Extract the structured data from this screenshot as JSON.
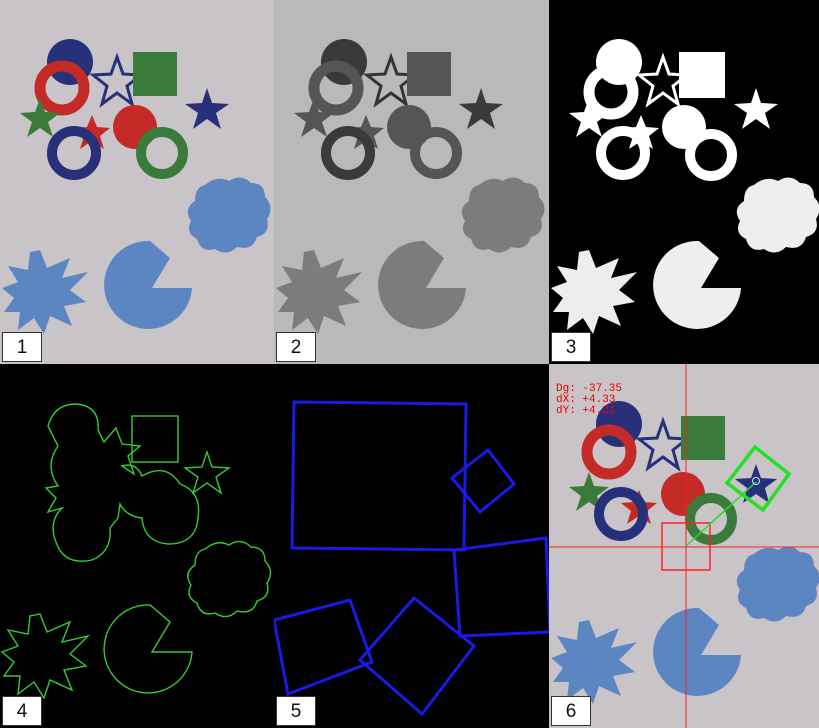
{
  "panels": [
    {
      "id": "1",
      "label": "1"
    },
    {
      "id": "2",
      "label": "2"
    },
    {
      "id": "3",
      "label": "3"
    },
    {
      "id": "4",
      "label": "4"
    },
    {
      "id": "5",
      "label": "5"
    },
    {
      "id": "6",
      "label": "6"
    }
  ],
  "readout": {
    "dg": "Dg: -37.35",
    "dx": "dX: +4.33",
    "dy": "dY: +4.21"
  },
  "colors": {
    "paper": "#c8c4c8",
    "gray_paper": "#b9b9b9",
    "red": "#c42a26",
    "navy": "#27317a",
    "green": "#3a7a3a",
    "light_blue": "#5b86c2",
    "contour_green": "#33cc33",
    "box_blue": "#1a1ae6",
    "overlay_red": "#ff2020",
    "overlay_green": "#22e022"
  }
}
